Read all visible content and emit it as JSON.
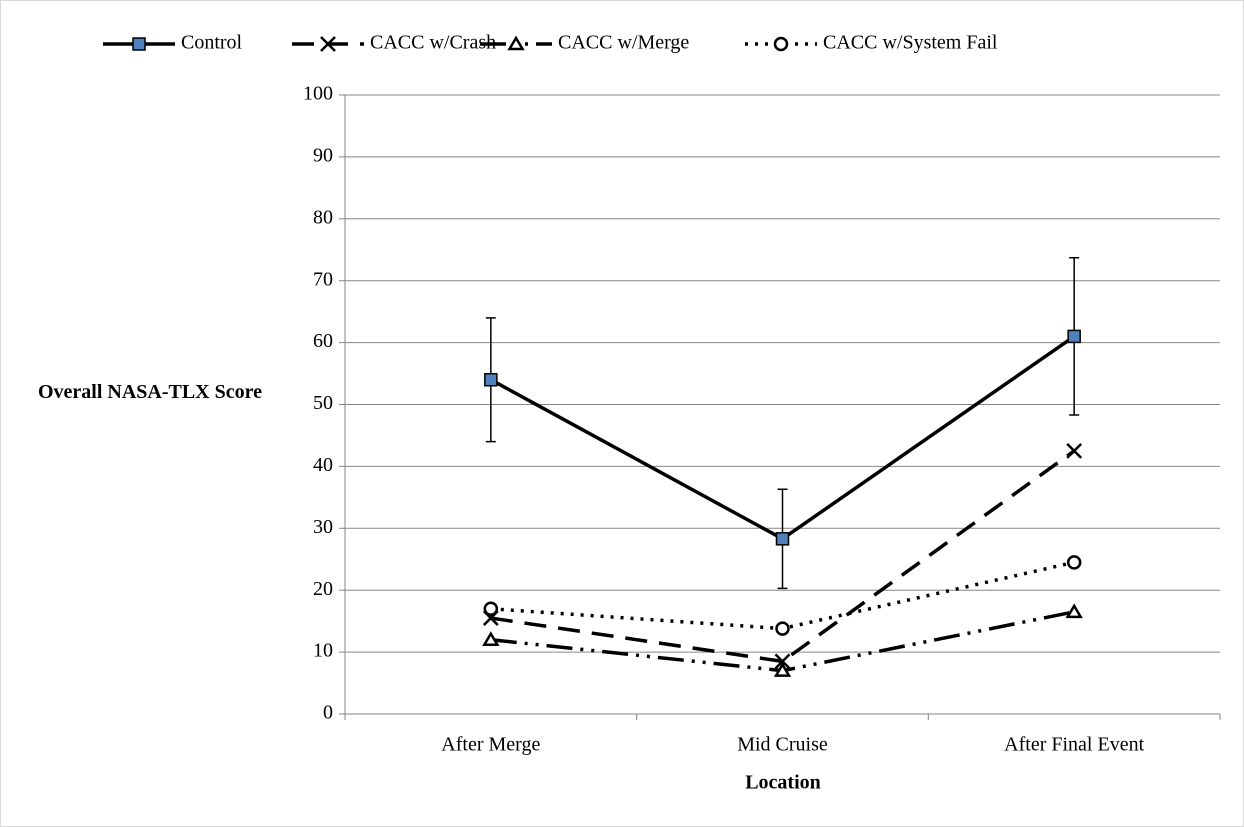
{
  "chart_data": {
    "type": "line",
    "categories": [
      "After Merge",
      "Mid Cruise",
      "After Final Event"
    ],
    "x_label": "Location",
    "y_label": "Overall NASA-TLX Score",
    "ylim": [
      0,
      100
    ],
    "yticks": [
      0,
      10,
      20,
      30,
      40,
      50,
      60,
      70,
      80,
      90,
      100
    ],
    "grid": true,
    "legend": "top",
    "series": [
      {
        "name": "Control",
        "color": "#000000",
        "dash": "solid",
        "marker": "square",
        "marker_fill": "#4f81bd",
        "values": [
          54,
          28.3,
          61
        ],
        "errors": [
          10,
          8,
          12.7
        ]
      },
      {
        "name": "CACC w/Crash",
        "color": "#000000",
        "dash": "dash",
        "marker": "x",
        "marker_fill": "none",
        "values": [
          15.5,
          8.5,
          42.5
        ]
      },
      {
        "name": "CACC w/Merge",
        "color": "#000000",
        "dash": "dash-dot-dot",
        "marker": "triangle",
        "marker_fill": "none",
        "values": [
          12,
          7,
          16.5
        ]
      },
      {
        "name": "CACC w/System Fail",
        "color": "#000000",
        "dash": "dot",
        "marker": "circle",
        "marker_fill": "none",
        "values": [
          17,
          13.8,
          24.5
        ]
      }
    ]
  }
}
